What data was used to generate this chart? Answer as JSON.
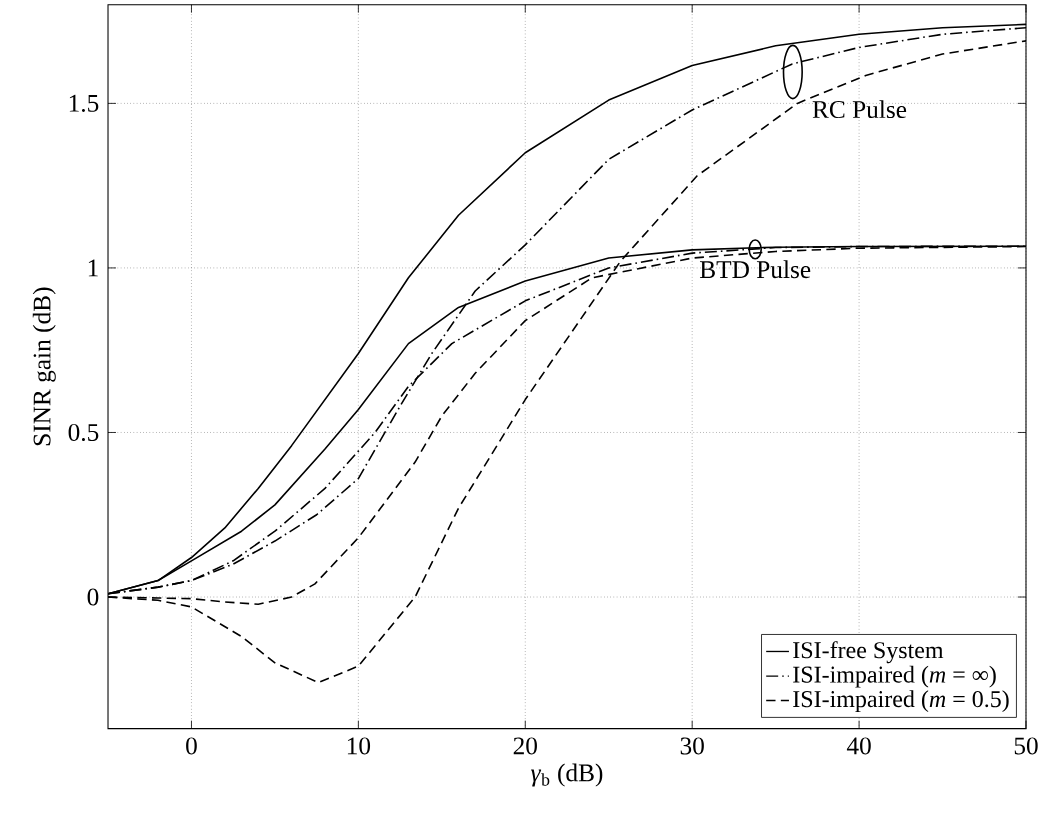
{
  "chart_data": {
    "type": "line",
    "xlabel": "*γ*$_{b}$ (dB)",
    "ylabel": "SINR gain (dB)",
    "xlim": [
      -5,
      50
    ],
    "ylim": [
      -0.4,
      1.8
    ],
    "xticks": [
      0,
      10,
      20,
      30,
      40,
      50
    ],
    "yticks": [
      0,
      0.5,
      1,
      1.5
    ],
    "grid": true,
    "legend": "bottom right",
    "series": [
      {
        "name": "ISI-free System",
        "color": "#000000",
        "line_style": "solid",
        "x": [
          -5,
          -2,
          0,
          2,
          4,
          6,
          8,
          10,
          13,
          16,
          20,
          25,
          30,
          35,
          40,
          45,
          50
        ],
        "values": [
          0.01,
          0.05,
          0.12,
          0.21,
          0.33,
          0.46,
          0.6,
          0.74,
          0.97,
          1.16,
          1.35,
          1.51,
          1.615,
          1.675,
          1.71,
          1.73,
          1.74
        ]
      },
      {
        "name": "ISI-impaired (*m* = ∞)",
        "color": "#000000",
        "line_style": "dashdot",
        "x": [
          -5,
          -2,
          0,
          2.5,
          5,
          7.5,
          10,
          12.5,
          14.4,
          17,
          20,
          25,
          30,
          36,
          40,
          45,
          50
        ],
        "values": [
          0.01,
          0.03,
          0.05,
          0.1,
          0.17,
          0.25,
          0.36,
          0.58,
          0.74,
          0.93,
          1.07,
          1.33,
          1.48,
          1.62,
          1.67,
          1.71,
          1.73
        ]
      },
      {
        "name": "ISI-impaired (*m* = 0.5)",
        "color": "#000000",
        "line_style": "dashed",
        "x": [
          -5,
          -2,
          0,
          3,
          5,
          7.6,
          10,
          13.4,
          16,
          20,
          25.7,
          30.3,
          36.3,
          40.4,
          45,
          50
        ],
        "values": [
          0.0,
          -0.01,
          -0.03,
          -0.12,
          -0.2,
          -0.26,
          -0.21,
          0.0,
          0.27,
          0.6,
          1.02,
          1.28,
          1.5,
          1.585,
          1.65,
          1.69
        ]
      },
      {
        "color": "#000000",
        "line_style": "solid",
        "x": [
          -5,
          -2,
          0,
          3,
          5,
          8,
          10,
          13,
          16,
          20,
          25,
          30,
          35,
          40,
          50
        ],
        "values": [
          0.01,
          0.05,
          0.11,
          0.2,
          0.28,
          0.45,
          0.57,
          0.77,
          0.88,
          0.96,
          1.03,
          1.055,
          1.063,
          1.065,
          1.066
        ]
      },
      {
        "color": "#000000",
        "line_style": "dashdot",
        "x": [
          -5,
          -2,
          0,
          2.5,
          5,
          8,
          11,
          13,
          15.6,
          20,
          25,
          30,
          35,
          40,
          50
        ],
        "values": [
          0.01,
          0.03,
          0.05,
          0.11,
          0.2,
          0.33,
          0.5,
          0.64,
          0.77,
          0.9,
          1.0,
          1.045,
          1.062,
          1.065,
          1.066
        ]
      },
      {
        "color": "#000000",
        "line_style": "dashed",
        "x": [
          -5,
          -2,
          0,
          2,
          4,
          6,
          7.4,
          10,
          13.4,
          15,
          17,
          20,
          24,
          30,
          35,
          40,
          50
        ],
        "values": [
          0.0,
          -0.003,
          -0.005,
          -0.015,
          -0.022,
          0.0,
          0.04,
          0.18,
          0.41,
          0.55,
          0.68,
          0.84,
          0.97,
          1.03,
          1.05,
          1.06,
          1.065
        ]
      }
    ],
    "annotations": [
      "RC Pulse",
      "BTD Pulse"
    ]
  }
}
